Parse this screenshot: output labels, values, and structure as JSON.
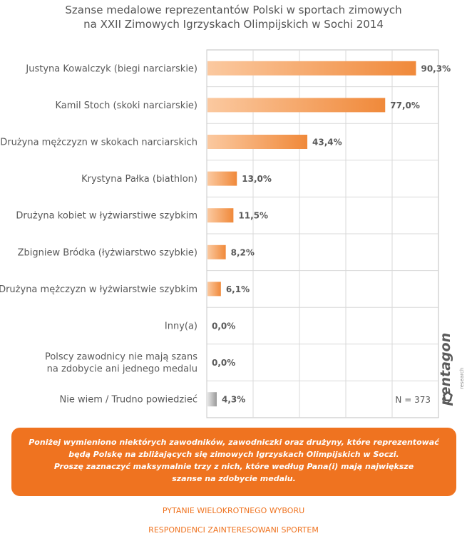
{
  "title_lines": [
    "Szanse medalowe reprezentantów Polski w sportach zimowych",
    "na  XXII Zimowych Igrzyskach Olimpijskich w Sochi 2014"
  ],
  "chart_data": {
    "type": "bar",
    "orientation": "horizontal",
    "categories": [
      [
        "Justyna Kowalczyk (biegi narciarskie)"
      ],
      [
        "Kamil Stoch (skoki narciarskie)"
      ],
      [
        "Drużyna mężczyzn w skokach narciarskich"
      ],
      [
        "Krystyna Pałka (biathlon)"
      ],
      [
        "Drużyna kobiet w łyżwiarstiwe szybkim"
      ],
      [
        "Zbigniew Bródka (łyżwiarstwo szybkie)"
      ],
      [
        "Drużyna mężczyzn w łyżwiarstwie szybkim"
      ],
      [
        "Inny(a)"
      ],
      [
        "Polscy zawodnicy nie mają szans",
        "na zdobycie ani jednego medalu"
      ],
      [
        "Nie wiem / Trudno powiedzieć"
      ]
    ],
    "values": [
      90.3,
      77.0,
      43.4,
      13.0,
      11.5,
      8.2,
      6.1,
      0.0,
      0.0,
      4.3
    ],
    "value_labels": [
      "90,3%",
      "77,0%",
      "43,4%",
      "13,0%",
      "11,5%",
      "8,2%",
      "6,1%",
      "0,0%",
      "0,0%",
      "4,3%"
    ],
    "bar_colors": [
      "orange",
      "orange",
      "orange",
      "orange",
      "orange",
      "orange",
      "orange",
      "orange",
      "orange",
      "gray"
    ],
    "xlim": [
      0,
      100
    ],
    "grid": true,
    "note": "N = 373"
  },
  "colors": {
    "bar_light": "#fbc9a0",
    "bar_dark": "#f0893a",
    "gray_light": "#e6e6e6",
    "gray_dark": "#9a9a9a",
    "box": "#ef7320",
    "footer": "#ef7320"
  },
  "logo": {
    "brand": "pentagon",
    "sub": "research"
  },
  "question_lines": [
    "Poniżej wymieniono niektórych zawodników, zawodniczki oraz drużyny, które reprezentować",
    "będą Polskę na zbliżających się zimowych Igrzyskach Olimpijskich w Soczi.",
    "Proszę zaznaczyć maksymalnie trzy z nich, które według Pana(i) mają największe",
    "szanse na zdobycie medalu."
  ],
  "footer": {
    "line1": "PYTANIE WIELOKROTNEGO WYBORU",
    "line2": "RESPONDENCI ZAINTERESOWANI SPORTEM"
  }
}
